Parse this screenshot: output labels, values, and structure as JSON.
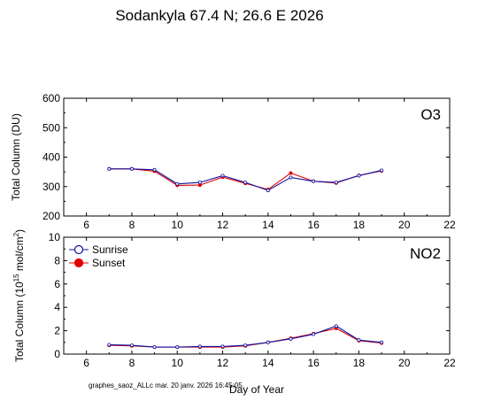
{
  "header": {
    "title": "Sodankyla  67.4 N; 26.6 E   2026"
  },
  "footer": {
    "caption": "graphes_saoz_ALLc  mar. 20 janv. 2026 16:45:05",
    "xlabel": "Day of Year"
  },
  "colors": {
    "sunrise": "#1010a0",
    "sunset": "#e00000",
    "axis": "#000000"
  },
  "chart_data": [
    {
      "type": "line",
      "label": "O3",
      "ylabel": "Total Column  (DU)",
      "xlim": [
        5,
        22
      ],
      "ylim": [
        200,
        600
      ],
      "x_ticks": [
        6,
        8,
        10,
        12,
        14,
        16,
        18,
        20,
        22
      ],
      "y_ticks": [
        200,
        300,
        400,
        500,
        600
      ],
      "series": [
        {
          "name": "Sunrise",
          "x": [
            7,
            8,
            9,
            10,
            11,
            12,
            13,
            14,
            15,
            16,
            17,
            18,
            19
          ],
          "values": [
            360,
            360,
            357,
            309,
            314,
            337,
            314,
            287,
            331,
            318,
            314,
            337,
            355
          ]
        },
        {
          "name": "Sunset",
          "x": [
            7,
            8,
            9,
            10,
            11,
            12,
            13,
            14,
            15,
            16,
            17,
            18,
            19
          ],
          "values": [
            360,
            360,
            352,
            304,
            305,
            332,
            311,
            290,
            346,
            318,
            312,
            338,
            353
          ]
        }
      ]
    },
    {
      "type": "line",
      "label": "NO2",
      "ylabel_main": "Total Column (10",
      "ylabel_exp1": "15",
      "ylabel_mid": " mol/cm",
      "ylabel_exp2": "2",
      "ylabel_end": ")",
      "xlim": [
        5,
        22
      ],
      "ylim": [
        0,
        10
      ],
      "x_ticks": [
        6,
        8,
        10,
        12,
        14,
        16,
        18,
        20,
        22
      ],
      "y_ticks": [
        0,
        2,
        4,
        6,
        8,
        10
      ],
      "legend": {
        "placement": "top-left",
        "entries": [
          "Sunrise",
          "Sunset"
        ]
      },
      "series": [
        {
          "name": "Sunrise",
          "x": [
            7,
            8,
            9,
            10,
            11,
            12,
            13,
            14,
            15,
            16,
            17,
            18,
            19
          ],
          "values": [
            0.8,
            0.75,
            0.6,
            0.6,
            0.65,
            0.65,
            0.75,
            1.0,
            1.3,
            1.7,
            2.4,
            1.2,
            1.0
          ]
        },
        {
          "name": "Sunset",
          "x": [
            7,
            8,
            9,
            10,
            11,
            12,
            13,
            14,
            15,
            16,
            17,
            18,
            19
          ],
          "values": [
            0.75,
            0.7,
            0.6,
            0.6,
            0.6,
            0.6,
            0.7,
            1.0,
            1.35,
            1.75,
            2.2,
            1.15,
            0.95
          ]
        }
      ]
    }
  ]
}
